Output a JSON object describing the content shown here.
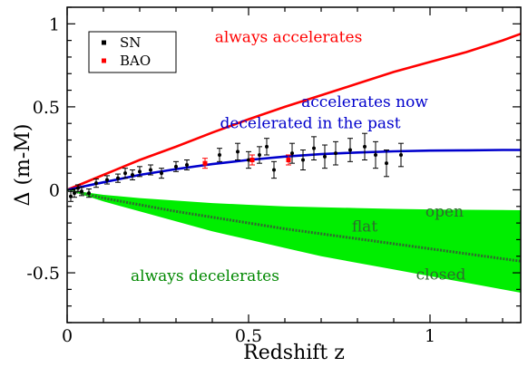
{
  "chart_data": {
    "type": "scatter",
    "title": "",
    "xlabel": "Redshift z",
    "ylabel": "Δ (m-M)",
    "xlim": [
      0,
      1.25
    ],
    "ylim": [
      -0.8,
      1.1
    ],
    "xticks": [
      0,
      0.5,
      1
    ],
    "xtick_labels": [
      "0",
      "0.5",
      "1"
    ],
    "yticks": [
      -0.5,
      0,
      0.5,
      1
    ],
    "ytick_labels": [
      "-0.5",
      "0",
      "0.5",
      "1"
    ],
    "grid": false,
    "legend": {
      "placement": "top-left",
      "entries": [
        {
          "label": "SN",
          "color": "#000000"
        },
        {
          "label": "BAO",
          "color": "#ff0000"
        }
      ]
    },
    "curves": [
      {
        "id": "always-accelerates",
        "color": "#ff0000",
        "x": [
          0,
          0.1,
          0.2,
          0.3,
          0.4,
          0.5,
          0.6,
          0.7,
          0.8,
          0.9,
          1.0,
          1.1,
          1.2,
          1.25
        ],
        "y": [
          0,
          0.09,
          0.18,
          0.26,
          0.345,
          0.425,
          0.5,
          0.57,
          0.64,
          0.71,
          0.77,
          0.83,
          0.9,
          0.94
        ]
      },
      {
        "id": "accelerates-now",
        "color": "#0000cc",
        "x": [
          0,
          0.1,
          0.2,
          0.3,
          0.4,
          0.5,
          0.6,
          0.7,
          0.8,
          0.9,
          1.0,
          1.1,
          1.2,
          1.25
        ],
        "y": [
          0,
          0.045,
          0.09,
          0.125,
          0.155,
          0.18,
          0.2,
          0.215,
          0.225,
          0.232,
          0.236,
          0.238,
          0.24,
          0.24
        ]
      },
      {
        "id": "flat",
        "color": "#2f6a2f",
        "x": [
          0,
          0.1,
          0.2,
          0.3,
          0.4,
          0.5,
          0.6,
          0.7,
          0.8,
          0.9,
          1.0,
          1.1,
          1.2,
          1.25
        ],
        "y": [
          0,
          -0.05,
          -0.09,
          -0.13,
          -0.165,
          -0.2,
          -0.235,
          -0.265,
          -0.295,
          -0.325,
          -0.355,
          -0.385,
          -0.415,
          -0.43
        ]
      }
    ],
    "band": {
      "id": "always-decelerates-band",
      "color": "#00ee00",
      "x": [
        0,
        0.1,
        0.2,
        0.3,
        0.4,
        0.5,
        0.6,
        0.7,
        0.8,
        0.9,
        1.0,
        1.1,
        1.2,
        1.25
      ],
      "upper": [
        0,
        -0.03,
        -0.05,
        -0.065,
        -0.08,
        -0.09,
        -0.1,
        -0.105,
        -0.11,
        -0.115,
        -0.118,
        -0.12,
        -0.122,
        -0.123
      ],
      "lower": [
        0,
        -0.07,
        -0.13,
        -0.19,
        -0.25,
        -0.3,
        -0.35,
        -0.4,
        -0.44,
        -0.48,
        -0.52,
        -0.56,
        -0.6,
        -0.62
      ]
    },
    "series": [
      {
        "name": "SN",
        "color": "#000000",
        "points": [
          {
            "x": 0.01,
            "y": -0.04,
            "err": 0.03
          },
          {
            "x": 0.02,
            "y": -0.02,
            "err": 0.025
          },
          {
            "x": 0.03,
            "y": 0.01,
            "err": 0.02
          },
          {
            "x": 0.04,
            "y": -0.01,
            "err": 0.025
          },
          {
            "x": 0.06,
            "y": -0.02,
            "err": 0.025
          },
          {
            "x": 0.08,
            "y": 0.04,
            "err": 0.025
          },
          {
            "x": 0.11,
            "y": 0.06,
            "err": 0.025
          },
          {
            "x": 0.14,
            "y": 0.07,
            "err": 0.025
          },
          {
            "x": 0.16,
            "y": 0.1,
            "err": 0.03
          },
          {
            "x": 0.18,
            "y": 0.09,
            "err": 0.03
          },
          {
            "x": 0.2,
            "y": 0.11,
            "err": 0.03
          },
          {
            "x": 0.23,
            "y": 0.12,
            "err": 0.03
          },
          {
            "x": 0.26,
            "y": 0.1,
            "err": 0.03
          },
          {
            "x": 0.3,
            "y": 0.14,
            "err": 0.03
          },
          {
            "x": 0.33,
            "y": 0.15,
            "err": 0.03
          },
          {
            "x": 0.42,
            "y": 0.21,
            "err": 0.04
          },
          {
            "x": 0.47,
            "y": 0.23,
            "err": 0.05
          },
          {
            "x": 0.5,
            "y": 0.18,
            "err": 0.05
          },
          {
            "x": 0.53,
            "y": 0.21,
            "err": 0.05
          },
          {
            "x": 0.55,
            "y": 0.26,
            "err": 0.05
          },
          {
            "x": 0.57,
            "y": 0.12,
            "err": 0.05
          },
          {
            "x": 0.62,
            "y": 0.22,
            "err": 0.06
          },
          {
            "x": 0.65,
            "y": 0.18,
            "err": 0.06
          },
          {
            "x": 0.68,
            "y": 0.25,
            "err": 0.07
          },
          {
            "x": 0.71,
            "y": 0.2,
            "err": 0.07
          },
          {
            "x": 0.74,
            "y": 0.22,
            "err": 0.07
          },
          {
            "x": 0.78,
            "y": 0.24,
            "err": 0.07
          },
          {
            "x": 0.82,
            "y": 0.26,
            "err": 0.08
          },
          {
            "x": 0.85,
            "y": 0.21,
            "err": 0.08
          },
          {
            "x": 0.88,
            "y": 0.16,
            "err": 0.08
          },
          {
            "x": 0.92,
            "y": 0.21,
            "err": 0.07
          }
        ]
      },
      {
        "name": "BAO",
        "color": "#ff0000",
        "points": [
          {
            "x": 0.38,
            "y": 0.16,
            "err": 0.03
          },
          {
            "x": 0.51,
            "y": 0.18,
            "err": 0.03
          },
          {
            "x": 0.61,
            "y": 0.18,
            "err": 0.03
          }
        ]
      }
    ],
    "annotations": [
      {
        "text": "always accelerates",
        "color": "#ff0000",
        "x": 0.61,
        "y": 0.89
      },
      {
        "text": "accelerates now",
        "color": "#0000cc",
        "x": 0.82,
        "y": 0.5
      },
      {
        "text": "decelerated in the past",
        "color": "#0000cc",
        "x": 0.67,
        "y": 0.37
      },
      {
        "text": "open",
        "color": "#2f6a2f",
        "x": 1.04,
        "y": -0.16
      },
      {
        "text": "flat",
        "color": "#2f6a2f",
        "x": 0.82,
        "y": -0.25
      },
      {
        "text": "closed",
        "color": "#2f6a2f",
        "x": 1.03,
        "y": -0.54
      },
      {
        "text": "always decelerates",
        "color": "#008800",
        "x": 0.38,
        "y": -0.55
      }
    ]
  }
}
